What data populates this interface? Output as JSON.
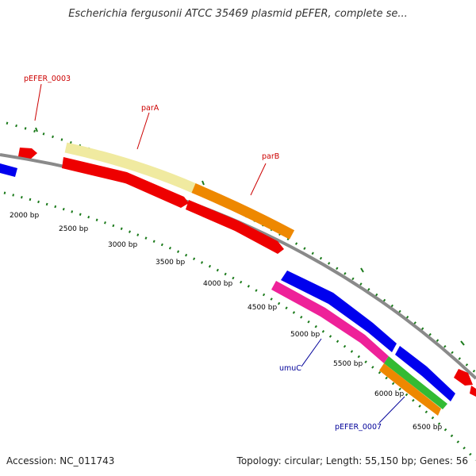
{
  "title": "Escherichia fergusonii ATCC 35469 plasmid pEFER, complete se...",
  "footer": {
    "accession": "Accession: NC_011743",
    "summary": "Topology: circular; Length: 55,150 bp; Genes: 56"
  },
  "scale_labels": [
    "2000 bp",
    "2500 bp",
    "3000 bp",
    "3500 bp",
    "4000 bp",
    "4500 bp",
    "5000 bp",
    "5500 bp",
    "6000 bp",
    "6500 bp"
  ],
  "gene_labels": [
    {
      "id": "pEFER_0003",
      "text": "pEFER_0003",
      "color": "#cc0000"
    },
    {
      "id": "parA",
      "text": "parA",
      "color": "#cc0000"
    },
    {
      "id": "parB",
      "text": "parB",
      "color": "#cc0000"
    },
    {
      "id": "umuC",
      "text": "umuC",
      "color": "#000099"
    },
    {
      "id": "pEFER_0007",
      "text": "pEFER_0007",
      "color": "#000099"
    }
  ],
  "colors": {
    "backbone": "#808080",
    "ticks": "#1a7a1a",
    "red": "#ee0000",
    "blue": "#0000ee",
    "orange": "#ee8800",
    "yellow": "#f0eaa0",
    "magenta": "#ee2299",
    "green": "#33bb33"
  }
}
